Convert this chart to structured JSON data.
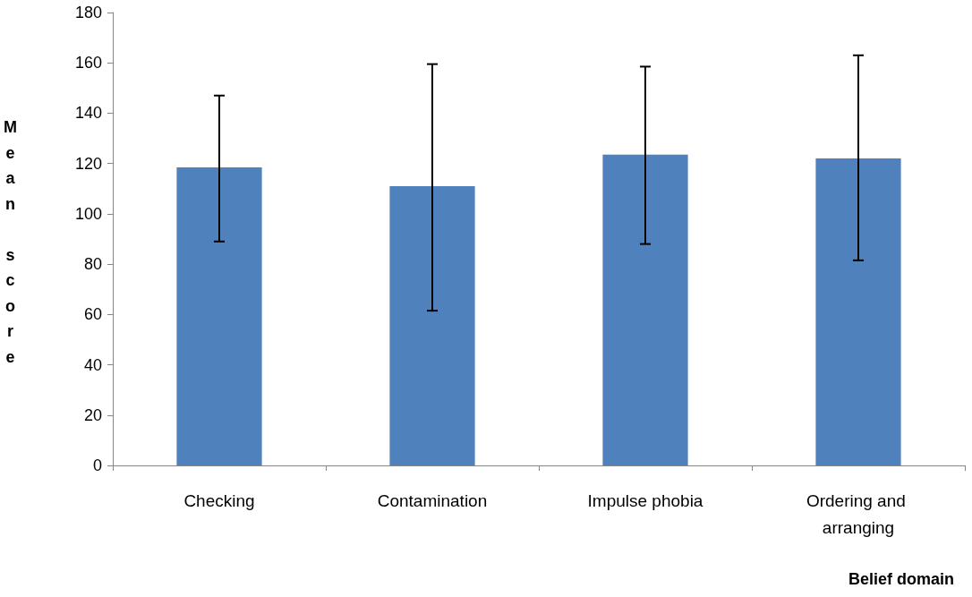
{
  "chart_data": {
    "type": "bar",
    "xlabel": "Belief domain",
    "ylabel": "Mean score",
    "categories": [
      "Checking",
      "Contamination",
      "Impulse phobia",
      "Ordering and arranging"
    ],
    "values": [
      118.5,
      111,
      123.5,
      122
    ],
    "errors": [
      [
        89,
        147
      ],
      [
        61.5,
        159.5
      ],
      [
        88,
        158.5
      ],
      [
        81.5,
        163
      ]
    ],
    "color": "#4f81bd",
    "ylim": [
      0,
      180
    ],
    "yticks": [
      0,
      20,
      40,
      60,
      80,
      100,
      120,
      140,
      160,
      180
    ],
    "grid": false
  }
}
